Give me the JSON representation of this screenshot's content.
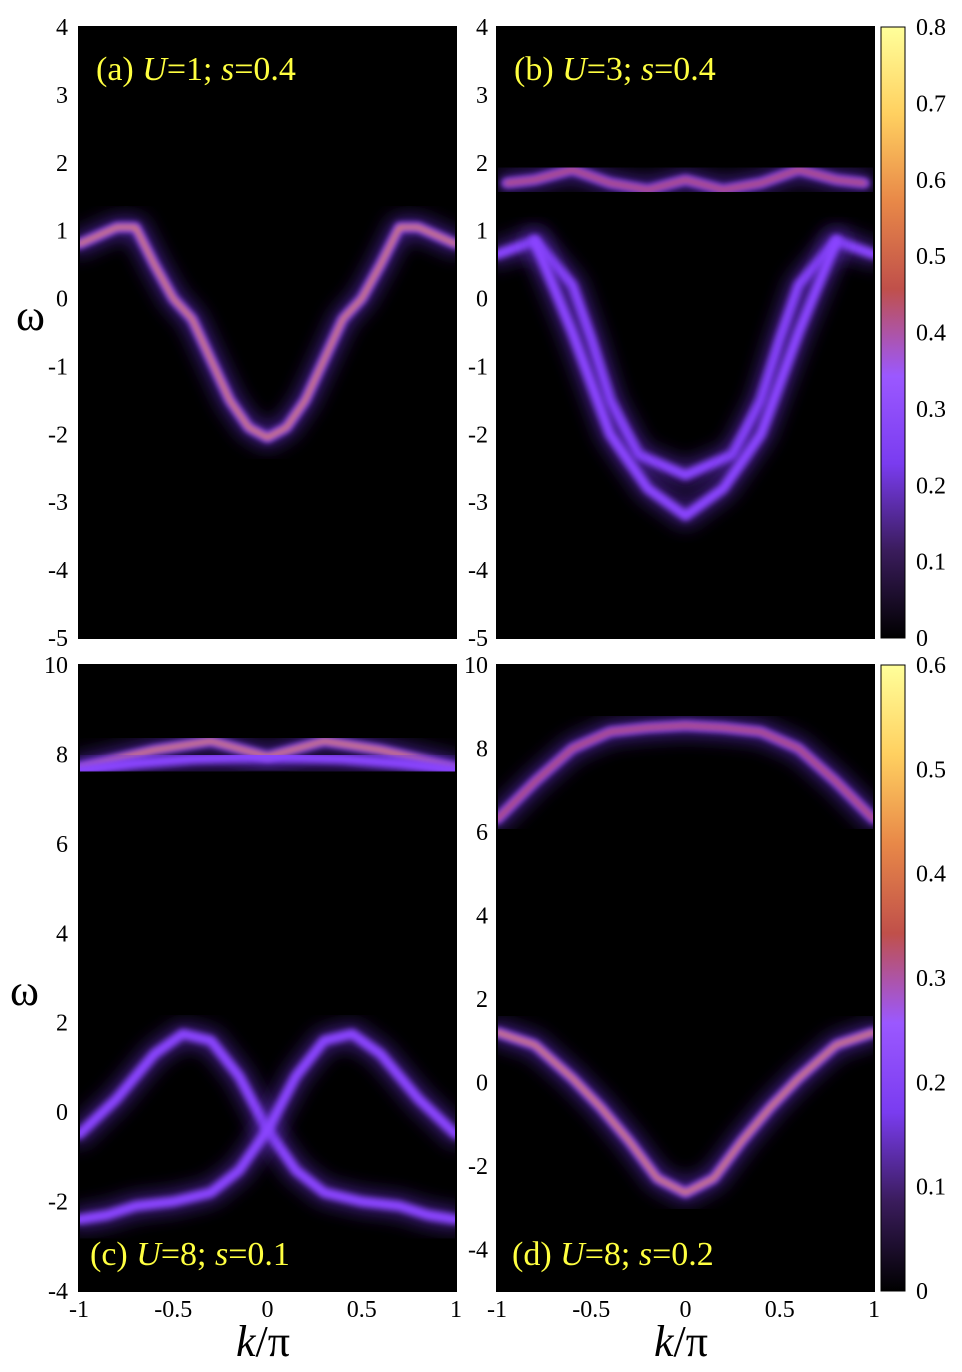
{
  "colormap": [
    "#000000",
    "#3a1c5c",
    "#7a3cf0",
    "#9b58ff",
    "#c0504a",
    "#e88848",
    "#ffd060",
    "#ffff9a"
  ],
  "chart_data": [
    {
      "type": "heatmap",
      "panel_label": {
        "prefix": "(a) ",
        "U": "1",
        "s": "0.4"
      },
      "xlim": [
        -1,
        1
      ],
      "ylim": [
        -5,
        4
      ],
      "yticks": [
        "-5",
        "-4",
        "-3",
        "-2",
        "-1",
        "0",
        "1",
        "2",
        "3",
        "4"
      ],
      "ylabel": "ω",
      "xlabel": "",
      "colorbar_ticks": [
        "0",
        "0.1",
        "0.2",
        "0.3",
        "0.4",
        "0.5",
        "0.6",
        "0.7",
        "0.8"
      ],
      "colorbar_range": [
        0,
        0.8
      ],
      "bands": [
        {
          "points": [
            [
              -1,
              0.8
            ],
            [
              -0.8,
              1.05
            ],
            [
              -0.7,
              1.05
            ],
            [
              -0.6,
              0.5
            ],
            [
              -0.5,
              0.0
            ],
            [
              -0.4,
              -0.3
            ],
            [
              -0.3,
              -0.9
            ],
            [
              -0.2,
              -1.5
            ],
            [
              -0.1,
              -1.9
            ],
            [
              0,
              -2.05
            ],
            [
              0.1,
              -1.9
            ],
            [
              0.2,
              -1.5
            ],
            [
              0.3,
              -0.9
            ],
            [
              0.4,
              -0.3
            ],
            [
              0.5,
              0.0
            ],
            [
              0.6,
              0.5
            ],
            [
              0.7,
              1.05
            ],
            [
              0.8,
              1.05
            ],
            [
              1,
              0.8
            ]
          ],
          "intensity": 0.55
        }
      ]
    },
    {
      "type": "heatmap",
      "panel_label": {
        "prefix": "(b) ",
        "U": "3",
        "s": "0.4"
      },
      "xlim": [
        -1,
        1
      ],
      "ylim": [
        -5,
        4
      ],
      "yticks": [
        "-5",
        "-4",
        "-3",
        "-2",
        "-1",
        "0",
        "1",
        "2",
        "3",
        "4"
      ],
      "ylabel": "",
      "xlabel": "",
      "colorbar_ticks": [
        "0",
        "0.1",
        "0.2",
        "0.3",
        "0.4",
        "0.5",
        "0.6",
        "0.7",
        "0.8"
      ],
      "colorbar_range": [
        0,
        0.8
      ],
      "bands": [
        {
          "points": [
            [
              -0.95,
              1.7
            ],
            [
              -0.8,
              1.75
            ],
            [
              -0.6,
              1.9
            ],
            [
              -0.4,
              1.7
            ],
            [
              -0.2,
              1.6
            ],
            [
              0,
              1.75
            ],
            [
              0.2,
              1.6
            ],
            [
              0.4,
              1.7
            ],
            [
              0.6,
              1.9
            ],
            [
              0.8,
              1.75
            ],
            [
              0.95,
              1.7
            ]
          ],
          "intensity": 0.5
        },
        {
          "points": [
            [
              -1,
              0.65
            ],
            [
              -0.8,
              0.85
            ],
            [
              -0.6,
              0.2
            ],
            [
              -0.5,
              -0.6
            ],
            [
              -0.4,
              -1.5
            ],
            [
              -0.25,
              -2.3
            ],
            [
              0,
              -2.6
            ],
            [
              0.25,
              -2.3
            ],
            [
              0.4,
              -1.5
            ],
            [
              0.5,
              -0.6
            ],
            [
              0.6,
              0.2
            ],
            [
              0.8,
              0.85
            ],
            [
              1,
              0.65
            ]
          ],
          "intensity": 0.2
        },
        {
          "points": [
            [
              -0.8,
              0.85
            ],
            [
              -0.6,
              -0.5
            ],
            [
              -0.4,
              -2.0
            ],
            [
              -0.2,
              -2.8
            ],
            [
              0,
              -3.2
            ],
            [
              0.2,
              -2.8
            ],
            [
              0.4,
              -2.0
            ],
            [
              0.6,
              -0.5
            ],
            [
              0.8,
              0.85
            ]
          ],
          "intensity": 0.15
        }
      ]
    },
    {
      "type": "heatmap",
      "panel_label": {
        "prefix": "(c) ",
        "U": "8",
        "s": "0.1"
      },
      "xlim": [
        -1,
        1
      ],
      "ylim": [
        -4,
        10
      ],
      "xticks": [
        "-1",
        "-0.5",
        "0",
        "0.5",
        "1"
      ],
      "yticks": [
        "-4",
        "-2",
        "0",
        "2",
        "4",
        "6",
        "8",
        "10"
      ],
      "ylabel": "ω",
      "xlabel": "k/π",
      "bands": [
        {
          "points": [
            [
              -1,
              7.7
            ],
            [
              -0.6,
              8.1
            ],
            [
              -0.3,
              8.3
            ],
            [
              0,
              7.95
            ],
            [
              0.3,
              8.3
            ],
            [
              0.6,
              8.1
            ],
            [
              1,
              7.7
            ]
          ],
          "intensity": 0.55
        },
        {
          "points": [
            [
              -1,
              7.65
            ],
            [
              -0.7,
              7.8
            ],
            [
              -0.4,
              7.9
            ],
            [
              0,
              7.95
            ],
            [
              0.4,
              7.9
            ],
            [
              0.7,
              7.8
            ],
            [
              1,
              7.65
            ]
          ],
          "intensity": 0.3
        },
        {
          "points": [
            [
              -1,
              -0.5
            ],
            [
              -0.8,
              0.3
            ],
            [
              -0.6,
              1.3
            ],
            [
              -0.45,
              1.75
            ],
            [
              -0.3,
              1.6
            ],
            [
              -0.15,
              0.8
            ],
            [
              0,
              -0.4
            ],
            [
              0.15,
              -1.3
            ],
            [
              0.3,
              -1.8
            ],
            [
              0.5,
              -2.0
            ],
            [
              0.7,
              -2.1
            ],
            [
              0.85,
              -2.3
            ],
            [
              1,
              -2.4
            ]
          ],
          "intensity": 0.25
        },
        {
          "points": [
            [
              -1,
              -2.4
            ],
            [
              -0.85,
              -2.3
            ],
            [
              -0.7,
              -2.1
            ],
            [
              -0.5,
              -2.0
            ],
            [
              -0.3,
              -1.8
            ],
            [
              -0.15,
              -1.3
            ],
            [
              0,
              -0.4
            ],
            [
              0.15,
              0.8
            ],
            [
              0.3,
              1.6
            ],
            [
              0.45,
              1.75
            ],
            [
              0.6,
              1.3
            ],
            [
              0.8,
              0.3
            ],
            [
              1,
              -0.5
            ]
          ],
          "intensity": 0.25
        }
      ]
    },
    {
      "type": "heatmap",
      "panel_label": {
        "prefix": "(d) ",
        "U": "8",
        "s": "0.2"
      },
      "xlim": [
        -1,
        1
      ],
      "ylim": [
        -5,
        10
      ],
      "xticks": [
        "-1",
        "-0.5",
        "0",
        "0.5",
        "1"
      ],
      "yticks": [
        "-4",
        "-2",
        "0",
        "2",
        "4",
        "6",
        "8",
        "10"
      ],
      "ylabel": "",
      "xlabel": "k/π",
      "colorbar_ticks": [
        "0",
        "0.1",
        "0.2",
        "0.3",
        "0.4",
        "0.5",
        "0.6"
      ],
      "colorbar_range": [
        0,
        0.6
      ],
      "bands": [
        {
          "points": [
            [
              -1,
              6.3
            ],
            [
              -0.8,
              7.2
            ],
            [
              -0.6,
              8.0
            ],
            [
              -0.4,
              8.4
            ],
            [
              -0.2,
              8.5
            ],
            [
              0,
              8.55
            ],
            [
              0.2,
              8.5
            ],
            [
              0.4,
              8.4
            ],
            [
              0.6,
              8.0
            ],
            [
              0.8,
              7.2
            ],
            [
              1,
              6.3
            ]
          ],
          "intensity": 0.5
        },
        {
          "points": [
            [
              -1,
              1.2
            ],
            [
              -0.8,
              0.9
            ],
            [
              -0.6,
              0.1
            ],
            [
              -0.45,
              -0.6
            ],
            [
              -0.3,
              -1.4
            ],
            [
              -0.15,
              -2.3
            ],
            [
              0,
              -2.65
            ],
            [
              0.15,
              -2.3
            ],
            [
              0.3,
              -1.4
            ],
            [
              0.45,
              -0.6
            ],
            [
              0.6,
              0.1
            ],
            [
              0.8,
              0.9
            ],
            [
              1,
              1.2
            ]
          ],
          "intensity": 0.55
        }
      ]
    }
  ]
}
